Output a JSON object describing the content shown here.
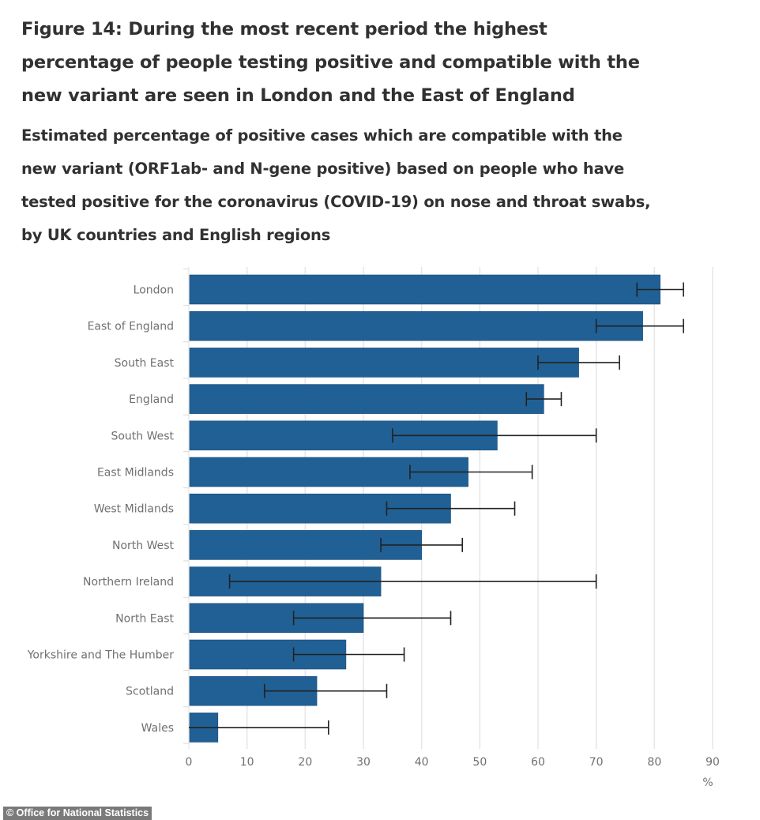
{
  "header": {
    "title": "Figure 14: During the most recent period the highest percentage of people testing positive and compatible with the new variant are seen in London and the East of England",
    "subtitle": "Estimated percentage of positive cases which are compatible with the new variant (ORF1ab- and N-gene positive) based on people who have tested positive for the coronavirus (COVID-19) on nose and throat swabs, by UK countries and English regions"
  },
  "credit": "© Office for National Statistics",
  "colors": {
    "bar": "#206095",
    "error_bar": "#222222",
    "grid": "#e6e6e6",
    "axis_text": "#707071"
  },
  "chart_data": {
    "type": "bar",
    "orientation": "horizontal",
    "title": "Figure 14: During the most recent period the highest percentage of people testing positive and compatible with the new variant are seen in London and the East of England",
    "subtitle": "Estimated percentage of positive cases which are compatible with the new variant (ORF1ab- and N-gene positive) based on people who have tested positive for the coronavirus (COVID-19) on nose and throat swabs, by UK countries and English regions",
    "xlabel": "%",
    "ylabel": "",
    "xlim": [
      0,
      90
    ],
    "xticks": [
      0,
      10,
      20,
      30,
      40,
      50,
      60,
      70,
      80,
      90
    ],
    "grid": true,
    "legend": "none",
    "categories": [
      "London",
      "East of England",
      "South East",
      "England",
      "South West",
      "East Midlands",
      "West Midlands",
      "North West",
      "Northern Ireland",
      "North East",
      "Yorkshire and The Humber",
      "Scotland",
      "Wales"
    ],
    "values": [
      81,
      78,
      67,
      61,
      53,
      48,
      45,
      40,
      33,
      30,
      27,
      22,
      5
    ],
    "lower_ci": [
      77,
      70,
      60,
      58,
      35,
      38,
      34,
      33,
      7,
      18,
      18,
      13,
      0
    ],
    "upper_ci": [
      85,
      85,
      74,
      64,
      70,
      59,
      56,
      47,
      70,
      45,
      37,
      34,
      24
    ]
  }
}
